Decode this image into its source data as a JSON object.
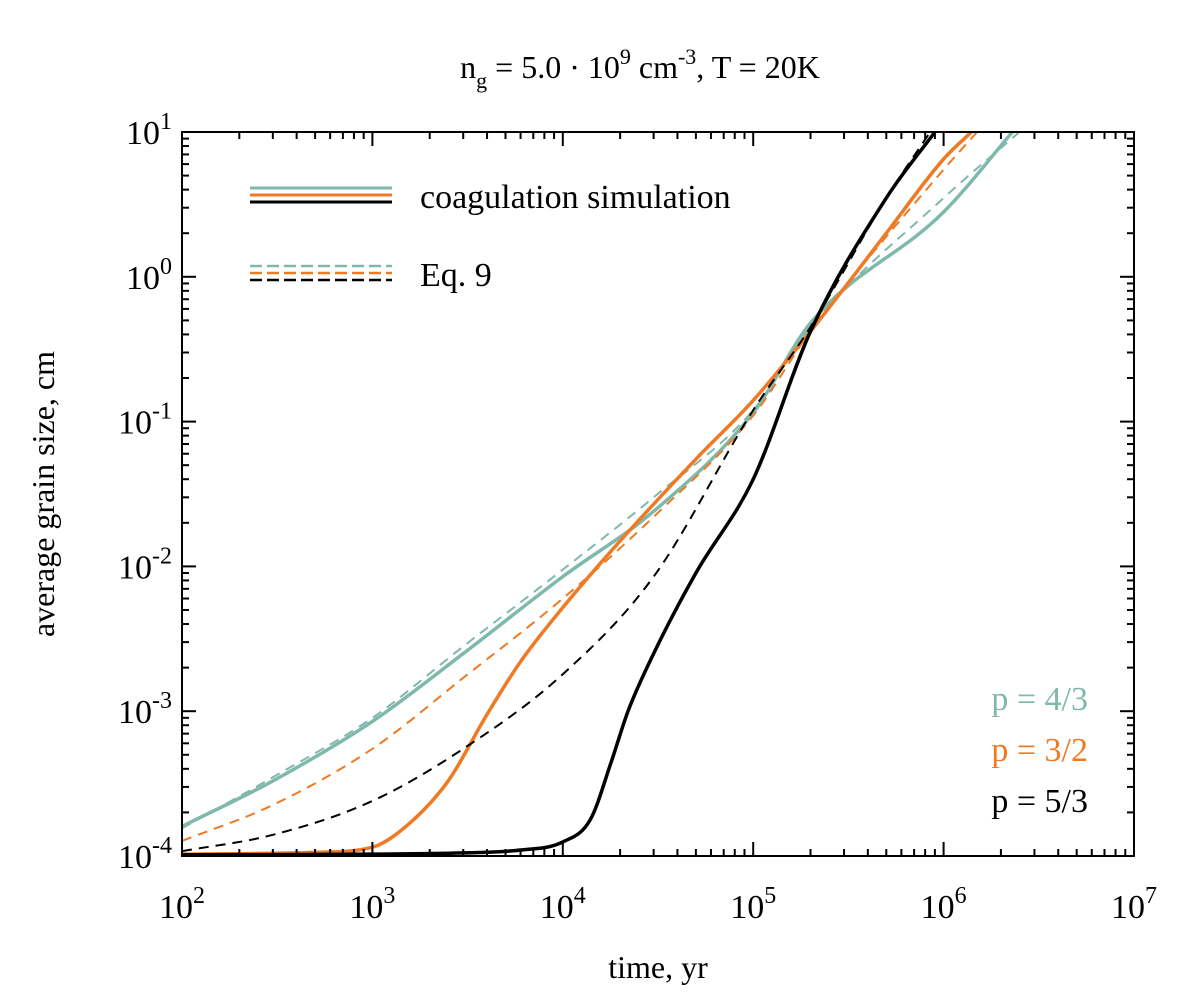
{
  "chart_data": {
    "type": "line",
    "title": {
      "base": "n",
      "sub": "g",
      "mid": " = 5.0 · 10",
      "sup1": "9",
      "unit": " cm",
      "sup2": "-3",
      "tail": ", T =  20K"
    },
    "xlabel": "time, yr",
    "ylabel": "average grain size, cm",
    "x_scale": "log",
    "y_scale": "log",
    "xlim": [
      100,
      10000000
    ],
    "ylim": [
      0.0001,
      10
    ],
    "x_ticks": [
      {
        "value": 100,
        "base": "10",
        "exp": "2"
      },
      {
        "value": 1000,
        "base": "10",
        "exp": "3"
      },
      {
        "value": 10000,
        "base": "10",
        "exp": "4"
      },
      {
        "value": 100000,
        "base": "10",
        "exp": "5"
      },
      {
        "value": 1000000,
        "base": "10",
        "exp": "6"
      },
      {
        "value": 10000000,
        "base": "10",
        "exp": "7"
      }
    ],
    "y_ticks": [
      {
        "value": 0.0001,
        "base": "10",
        "exp": "-4"
      },
      {
        "value": 0.001,
        "base": "10",
        "exp": "-3"
      },
      {
        "value": 0.01,
        "base": "10",
        "exp": "-2"
      },
      {
        "value": 0.1,
        "base": "10",
        "exp": "-1"
      },
      {
        "value": 1,
        "base": "10",
        "exp": "0"
      },
      {
        "value": 10,
        "base": "10",
        "exp": "1"
      }
    ],
    "legend": {
      "position": "top-left",
      "entries": [
        {
          "label": "coagulation simulation",
          "style": "solid",
          "colors": [
            "#7fb9ac",
            "#f07a24",
            "#000000"
          ]
        },
        {
          "label": "Eq. 9",
          "style": "dashed",
          "colors": [
            "#7fb9ac",
            "#f07a24",
            "#000000"
          ]
        }
      ]
    },
    "annotations": [
      {
        "text": "p = 4/3",
        "color": "#7fb9ac"
      },
      {
        "text": "p = 3/2",
        "color": "#f07a24"
      },
      {
        "text": "p = 5/3",
        "color": "#000000"
      }
    ],
    "series": [
      {
        "name": "p = 4/3 coagulation simulation",
        "color": "#7fb9ac",
        "style": "solid",
        "x": [
          100,
          300,
          1000,
          3000,
          10000,
          30000,
          100000,
          200000,
          1000000,
          2300000
        ],
        "y": [
          0.00016,
          0.00033,
          0.00085,
          0.0025,
          0.0085,
          0.024,
          0.115,
          0.48,
          2.8,
          10
        ]
      },
      {
        "name": "p = 4/3 Eq. 9",
        "color": "#7fb9ac",
        "style": "dashed",
        "x": [
          100,
          300,
          1000,
          3000,
          10000,
          30000,
          100000,
          200000,
          1000000,
          2500000
        ],
        "y": [
          0.000155,
          0.00035,
          0.0009,
          0.0028,
          0.0095,
          0.03,
          0.12,
          0.45,
          3.5,
          10
        ]
      },
      {
        "name": "p = 3/2 coagulation simulation",
        "color": "#f07a24",
        "style": "solid",
        "x": [
          100,
          500,
          1000,
          1500,
          2500,
          4000,
          6000,
          10000,
          20000,
          50000,
          100000,
          200000,
          500000,
          1000000,
          1400000
        ],
        "y": [
          0.000103,
          0.000106,
          0.000115,
          0.00016,
          0.00033,
          0.00095,
          0.0022,
          0.0052,
          0.015,
          0.055,
          0.14,
          0.42,
          2.0,
          6.5,
          10
        ]
      },
      {
        "name": "p = 3/2 Eq. 9",
        "color": "#f07a24",
        "style": "dashed",
        "x": [
          100,
          300,
          1000,
          3000,
          10000,
          30000,
          100000,
          200000,
          1000000,
          1500000
        ],
        "y": [
          0.000127,
          0.000225,
          0.00055,
          0.0017,
          0.006,
          0.022,
          0.11,
          0.42,
          5.5,
          10
        ]
      },
      {
        "name": "p = 5/3 coagulation simulation",
        "color": "#000000",
        "style": "solid",
        "x": [
          100,
          1000,
          3000,
          6000,
          10000,
          14000,
          18000,
          22000,
          30000,
          50000,
          100000,
          200000,
          500000,
          900000
        ],
        "y": [
          0.000102,
          0.000103,
          0.000105,
          0.00011,
          0.000125,
          0.00018,
          0.00045,
          0.001,
          0.0025,
          0.009,
          0.04,
          0.42,
          3.5,
          10
        ]
      },
      {
        "name": "p = 5/3 Eq. 9",
        "color": "#000000",
        "style": "dashed",
        "x": [
          100,
          300,
          1000,
          3000,
          10000,
          30000,
          100000,
          200000,
          500000,
          850000
        ],
        "y": [
          0.000108,
          0.00014,
          0.00024,
          0.00055,
          0.0018,
          0.0085,
          0.12,
          0.45,
          3.5,
          10
        ]
      }
    ]
  }
}
